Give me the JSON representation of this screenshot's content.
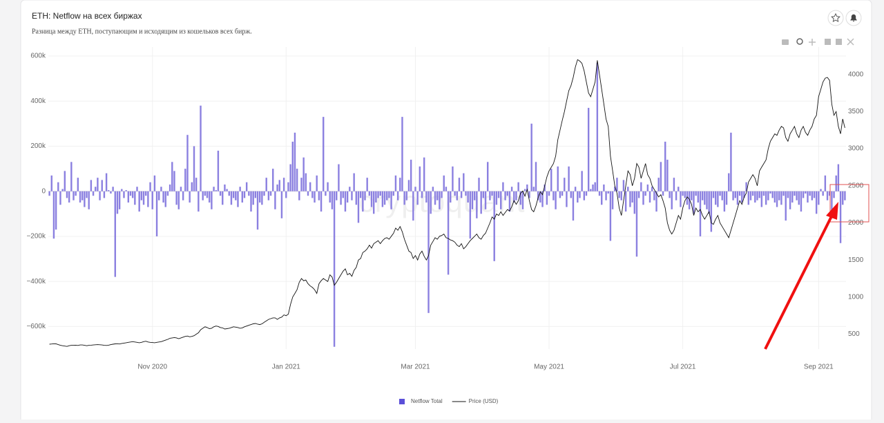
{
  "header": {
    "title": "ETH: Netflow на всех биржах",
    "subtitle": "Разница между ETH, поступающим и исходящим из кошельков всех бирж."
  },
  "chart_data": {
    "type": "bar",
    "watermark": "cryptoquant",
    "grid": true,
    "categories": [
      null,
      null,
      null,
      null,
      null,
      null,
      null,
      null,
      null,
      null,
      null,
      null,
      null,
      null,
      null,
      null,
      null,
      null,
      null,
      null,
      null,
      null,
      null,
      null,
      null,
      null,
      null,
      null,
      null,
      null,
      null,
      null,
      null,
      null,
      null,
      null,
      null,
      null,
      null,
      null,
      null,
      null,
      null,
      null,
      null,
      null,
      null,
      "Nov 2020",
      null,
      null,
      null,
      null,
      null,
      null,
      null,
      null,
      null,
      null,
      null,
      null,
      null,
      null,
      null,
      null,
      null,
      null,
      null,
      null,
      null,
      null,
      null,
      null,
      null,
      null,
      null,
      null,
      null,
      null,
      null,
      null,
      null,
      null,
      null,
      null,
      null,
      null,
      null,
      null,
      null,
      null,
      null,
      null,
      null,
      null,
      null,
      null,
      null,
      null,
      null,
      null,
      null,
      null,
      null,
      null,
      null,
      null,
      null,
      null,
      "Jan 2021",
      null,
      null,
      null,
      null,
      null,
      null,
      null,
      null,
      null,
      null,
      null,
      null,
      null,
      null,
      null,
      null,
      null,
      null,
      null,
      null,
      null,
      null,
      null,
      null,
      null,
      null,
      null,
      null,
      null,
      null,
      null,
      null,
      null,
      null,
      null,
      null,
      null,
      null,
      null,
      null,
      null,
      null,
      null,
      null,
      null,
      null,
      null,
      null,
      null,
      null,
      null,
      null,
      null,
      null,
      null,
      null,
      null,
      null,
      "Mar 2021",
      null,
      null,
      null,
      null,
      null,
      null,
      null,
      null,
      null,
      null,
      null,
      null,
      null,
      null,
      null,
      null,
      null,
      null,
      null,
      null,
      null,
      null,
      null,
      null,
      null,
      null,
      null,
      null,
      null,
      null,
      null,
      null,
      null,
      null,
      null,
      null,
      null,
      null,
      null,
      null,
      null,
      null,
      null,
      null,
      null,
      null,
      null,
      null,
      null,
      null,
      null,
      null,
      null,
      null,
      null,
      null,
      null,
      null,
      null,
      null,
      "May 2021",
      null,
      null,
      null,
      null,
      null,
      null,
      null,
      null,
      null,
      null,
      null,
      null,
      null,
      null,
      null,
      null,
      null,
      null,
      null,
      null,
      null,
      null,
      null,
      null,
      null,
      null,
      null,
      null,
      null,
      null,
      null,
      null,
      null,
      null,
      null,
      null,
      null,
      null,
      null,
      null,
      null,
      null,
      null,
      null,
      null,
      null,
      null,
      null,
      null,
      null,
      null,
      null,
      null,
      null,
      null,
      null,
      null,
      null,
      null,
      null,
      "Jul 2021",
      null,
      null,
      null,
      null,
      null,
      null,
      null,
      null,
      null,
      null,
      null,
      null,
      null,
      null,
      null,
      null,
      null,
      null,
      null,
      null,
      null,
      null,
      null,
      null,
      null,
      null,
      null,
      null,
      null,
      null,
      null,
      null,
      null,
      null,
      null,
      null,
      null,
      null,
      null,
      null,
      null,
      null,
      null,
      null,
      null,
      null,
      null,
      null,
      null,
      null,
      null,
      null,
      null,
      null,
      null,
      null,
      null,
      null,
      null,
      null,
      null,
      "Sep 2021",
      null,
      null,
      null,
      null,
      null,
      null,
      null,
      null,
      null,
      null,
      null,
      null
    ],
    "series": [
      {
        "name": "Netflow Total",
        "type": "bar",
        "color": "#8b80e0",
        "values": [
          -20000,
          70000,
          -210000,
          -170000,
          40000,
          -60000,
          10000,
          90000,
          -30000,
          -50000,
          130000,
          -40000,
          -20000,
          60000,
          -50000,
          -40000,
          -70000,
          -30000,
          -80000,
          50000,
          -20000,
          20000,
          60000,
          -40000,
          50000,
          -30000,
          80000,
          5000,
          -10000,
          20000,
          -380000,
          -100000,
          -80000,
          10000,
          -30000,
          5000,
          -50000,
          -20000,
          -30000,
          -60000,
          20000,
          -90000,
          -40000,
          -60000,
          -20000,
          -70000,
          40000,
          -80000,
          70000,
          -200000,
          -40000,
          20000,
          -50000,
          -70000,
          -20000,
          30000,
          130000,
          90000,
          -60000,
          -80000,
          20000,
          -40000,
          100000,
          250000,
          -50000,
          40000,
          200000,
          60000,
          -90000,
          380000,
          -40000,
          -20000,
          -30000,
          -50000,
          -80000,
          20000,
          5000,
          180000,
          -20000,
          -60000,
          30000,
          10000,
          -20000,
          -60000,
          -30000,
          -40000,
          -70000,
          20000,
          -50000,
          -30000,
          40000,
          -20000,
          -90000,
          -60000,
          -30000,
          -170000,
          -50000,
          -60000,
          -20000,
          60000,
          -40000,
          -20000,
          100000,
          -80000,
          30000,
          50000,
          -120000,
          60000,
          -30000,
          40000,
          120000,
          220000,
          260000,
          100000,
          -40000,
          60000,
          150000,
          80000,
          -20000,
          40000,
          -30000,
          -50000,
          70000,
          -40000,
          -90000,
          330000,
          -20000,
          40000,
          -50000,
          -80000,
          -690000,
          -40000,
          120000,
          -60000,
          -30000,
          -90000,
          -50000,
          20000,
          -40000,
          80000,
          -60000,
          -140000,
          -30000,
          -90000,
          -40000,
          60000,
          -20000,
          -70000,
          -100000,
          -50000,
          -30000,
          -20000,
          -70000,
          -60000,
          -40000,
          -30000,
          -80000,
          -20000,
          70000,
          -40000,
          60000,
          330000,
          -60000,
          -40000,
          50000,
          140000,
          -130000,
          20000,
          -60000,
          110000,
          -30000,
          150000,
          -50000,
          -540000,
          -100000,
          20000,
          -60000,
          -40000,
          -80000,
          -30000,
          70000,
          20000,
          -370000,
          -50000,
          110000,
          -20000,
          -40000,
          60000,
          -30000,
          80000,
          -20000,
          -50000,
          -210000,
          -80000,
          -40000,
          -120000,
          60000,
          -100000,
          -30000,
          -80000,
          130000,
          -40000,
          -20000,
          -310000,
          -60000,
          -30000,
          -80000,
          40000,
          -40000,
          -20000,
          -90000,
          20000,
          -50000,
          -40000,
          40000,
          -60000,
          -80000,
          10000,
          30000,
          -30000,
          300000,
          20000,
          130000,
          -40000,
          -50000,
          -70000,
          30000,
          -60000,
          -20000,
          100000,
          -40000,
          -80000,
          110000,
          -30000,
          -20000,
          60000,
          -70000,
          110000,
          -30000,
          -130000,
          20000,
          -50000,
          -30000,
          90000,
          -40000,
          -20000,
          370000,
          10000,
          30000,
          40000,
          570000,
          -20000,
          -60000,
          30000,
          -40000,
          -10000,
          -220000,
          -80000,
          20000,
          60000,
          -30000,
          -40000,
          50000,
          -90000,
          20000,
          -70000,
          -50000,
          -100000,
          -290000,
          -30000,
          40000,
          -60000,
          -20000,
          30000,
          -50000,
          20000,
          -40000,
          -90000,
          60000,
          130000,
          -20000,
          220000,
          140000,
          -30000,
          -80000,
          60000,
          -40000,
          20000,
          -70000,
          -20000,
          -30000,
          -60000,
          -80000,
          -40000,
          -100000,
          -20000,
          -50000,
          -200000,
          -40000,
          -60000,
          -80000,
          -100000,
          -180000,
          -30000,
          -60000,
          -70000,
          -20000,
          -40000,
          -90000,
          -60000,
          80000,
          260000,
          -40000,
          -30000,
          -60000,
          -20000,
          -50000,
          -30000,
          40000,
          -60000,
          -40000,
          -20000,
          -50000,
          -40000,
          -30000,
          -70000,
          -20000,
          -60000,
          -40000,
          -10000,
          -30000,
          -50000,
          -70000,
          -40000,
          -60000,
          -20000,
          -130000,
          -30000,
          -80000,
          -50000,
          -20000,
          -40000,
          -60000,
          -90000,
          -30000,
          -10000,
          -50000,
          -20000,
          -40000,
          -30000,
          -100000,
          -60000,
          10000,
          -20000,
          70000,
          -40000,
          -20000,
          -120000,
          -30000,
          70000,
          120000,
          -230000,
          -60000,
          -40000
        ]
      },
      {
        "name": "Price (USD)",
        "type": "line",
        "color": "#111111",
        "axis": "y2",
        "values": [
          365,
          368,
          372,
          370,
          360,
          350,
          345,
          340,
          335,
          345,
          350,
          350,
          352,
          348,
          355,
          355,
          350,
          345,
          350,
          352,
          355,
          358,
          360,
          358,
          355,
          350,
          348,
          352,
          360,
          365,
          370,
          372,
          368,
          375,
          380,
          385,
          390,
          395,
          400,
          395,
          390,
          385,
          390,
          400,
          405,
          395,
          390,
          388,
          385,
          390,
          395,
          400,
          410,
          420,
          430,
          445,
          450,
          455,
          450,
          440,
          450,
          460,
          470,
          475,
          465,
          470,
          480,
          500,
          520,
          560,
          580,
          600,
          590,
          575,
          580,
          600,
          610,
          605,
          590,
          585,
          570,
          575,
          580,
          590,
          600,
          595,
          590,
          580,
          585,
          600,
          610,
          620,
          630,
          640,
          645,
          635,
          630,
          640,
          660,
          680,
          700,
          710,
          720,
          720,
          700,
          720,
          730,
          760,
          750,
          770,
          900,
          1000,
          1050,
          1100,
          1200,
          1250,
          1220,
          1230,
          1180,
          1150,
          1130,
          1100,
          1050,
          1180,
          1220,
          1250,
          1230,
          1210,
          1300,
          1270,
          1160,
          1200,
          1250,
          1300,
          1350,
          1380,
          1300,
          1320,
          1280,
          1360,
          1400,
          1500,
          1520,
          1600,
          1620,
          1650,
          1700,
          1660,
          1720,
          1740,
          1760,
          1720,
          1760,
          1790,
          1800,
          1780,
          1820,
          1860,
          1930,
          1900,
          1950,
          1880,
          1780,
          1700,
          1620,
          1600,
          1520,
          1560,
          1500,
          1580,
          1620,
          1550,
          1500,
          1560,
          1700,
          1750,
          1800,
          1780,
          1820,
          1830,
          1850,
          1800,
          1790,
          1770,
          1760,
          1740,
          1700,
          1680,
          1720,
          1650,
          1680,
          1720,
          1760,
          1790,
          1820,
          1850,
          1800,
          1780,
          1830,
          1860,
          1930,
          2000,
          2080,
          2050,
          2120,
          2100,
          2150,
          2100,
          2140,
          2180,
          2160,
          2220,
          2300,
          2250,
          2300,
          2400,
          2430,
          2360,
          2450,
          2300,
          2180,
          2150,
          2230,
          2340,
          2420,
          2380,
          2500,
          2620,
          2700,
          2750,
          2800,
          2900,
          3120,
          3250,
          3380,
          3500,
          3640,
          3780,
          3850,
          3960,
          4100,
          4200,
          4180,
          4150,
          4050,
          3900,
          3750,
          3700,
          3800,
          3900,
          4190,
          4000,
          3800,
          3600,
          3400,
          3300,
          2900,
          2700,
          2500,
          2400,
          2200,
          2100,
          2300,
          2500,
          2700,
          2650,
          2500,
          2600,
          2800,
          2750,
          2600,
          2700,
          2800,
          2650,
          2600,
          2500,
          2450,
          2400,
          2350,
          2380,
          2300,
          2200,
          2000,
          1900,
          1850,
          1900,
          2000,
          2100,
          2050,
          2200,
          2300,
          2350,
          2320,
          2250,
          2100,
          2200,
          2150,
          2180,
          2100,
          2050,
          2100,
          2150,
          2000,
          1980,
          2050,
          2100,
          2000,
          1950,
          1900,
          1850,
          1800,
          1900,
          2000,
          2100,
          2200,
          2300,
          2250,
          2350,
          2400,
          2550,
          2600,
          2650,
          2600,
          2500,
          2700,
          2750,
          2800,
          2850,
          3000,
          3100,
          3150,
          3200,
          3180,
          3250,
          3300,
          3280,
          3150,
          3100,
          3200,
          3250,
          3300,
          3200,
          3150,
          3250,
          3300,
          3220,
          3180,
          3250,
          3300,
          3400,
          3450,
          3700,
          3800,
          3900,
          3950,
          3960,
          3920,
          3600,
          3450,
          3500,
          3300,
          3200,
          3400,
          3280
        ]
      }
    ],
    "ylim": [
      -700000,
      640000
    ],
    "yticks": [
      {
        "value": -600000,
        "label": "−600k"
      },
      {
        "value": -400000,
        "label": "−400k"
      },
      {
        "value": -200000,
        "label": "−200k"
      },
      0,
      {
        "value": 200000,
        "label": "200k"
      },
      {
        "value": 400000,
        "label": "400k"
      },
      {
        "value": 600000,
        "label": "600k"
      }
    ],
    "y2lim": [
      300,
      4370
    ],
    "y2ticks": [
      500,
      1000,
      1500,
      2000,
      2500,
      3000,
      3500,
      4000
    ]
  }
}
